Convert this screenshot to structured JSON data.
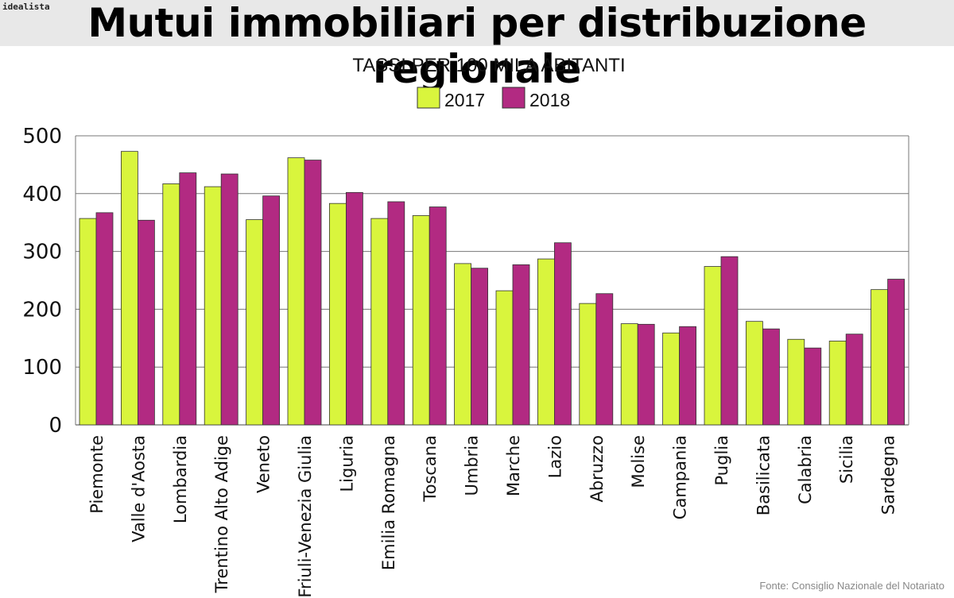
{
  "brand": "idealista",
  "title": "Mutui immobiliari per distribuzione regionale",
  "source": "Fonte: Consiglio Nazionale del Notariato",
  "colors": {
    "2017": "#d9f53d",
    "2018": "#b22a82"
  },
  "chart_data": {
    "type": "bar",
    "subtitle": "TASSI PER 100 MILA ABITANTI",
    "legend_position": "top-center",
    "grid": true,
    "ylim": [
      0,
      500
    ],
    "yticks": [
      0,
      100,
      200,
      300,
      400,
      500
    ],
    "categories": [
      "Piemonte",
      "Valle d'Aosta",
      "Lombardia",
      "Trentino Alto Adige",
      "Veneto",
      "Friuli-Venezia Giulia",
      "Liguria",
      "Emilia Romagna",
      "Toscana",
      "Umbria",
      "Marche",
      "Lazio",
      "Abruzzo",
      "Molise",
      "Campania",
      "Puglia",
      "Basilicata",
      "Calabria",
      "Sicilia",
      "Sardegna"
    ],
    "series": [
      {
        "name": "2017",
        "values": [
          357,
          473,
          417,
          412,
          355,
          462,
          383,
          357,
          362,
          279,
          232,
          287,
          210,
          175,
          159,
          274,
          179,
          148,
          145,
          234
        ]
      },
      {
        "name": "2018",
        "values": [
          367,
          354,
          436,
          434,
          396,
          458,
          402,
          386,
          377,
          271,
          277,
          315,
          227,
          174,
          170,
          291,
          166,
          133,
          157,
          252
        ]
      }
    ]
  }
}
